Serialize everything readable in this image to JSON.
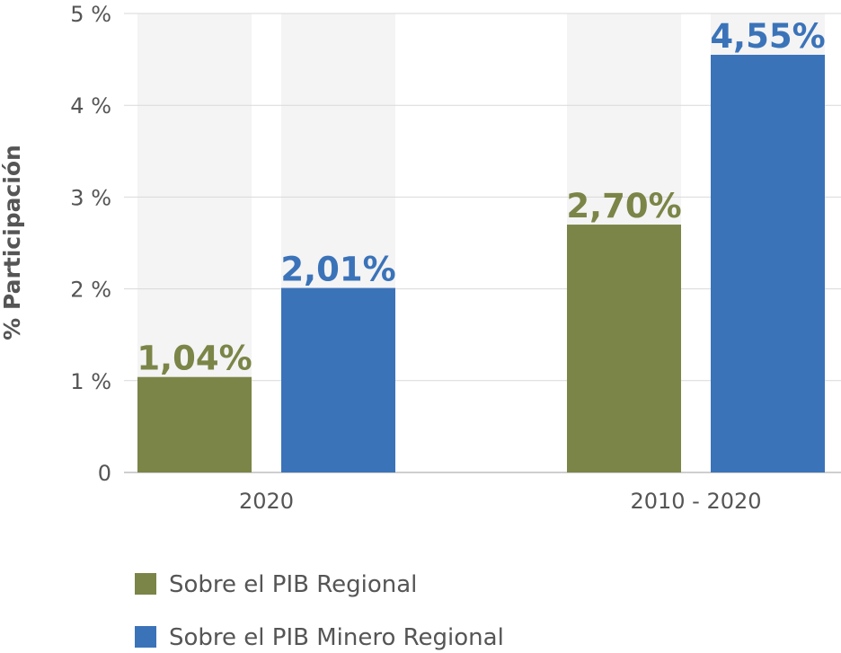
{
  "chart_data": {
    "type": "bar",
    "ylabel": "% Participación",
    "categories": [
      "2020",
      "2010 - 2020"
    ],
    "y_ticks": [
      {
        "value": 0,
        "label": "0"
      },
      {
        "value": 1,
        "label": "1 %"
      },
      {
        "value": 2,
        "label": "2 %"
      },
      {
        "value": 3,
        "label": "3 %"
      },
      {
        "value": 4,
        "label": "4 %"
      },
      {
        "value": 5,
        "label": "5 %"
      }
    ],
    "ylim": [
      0,
      5
    ],
    "grid": true,
    "legend_position": "bottom-left",
    "series": [
      {
        "name": "Sobre el PIB Regional",
        "color": "#7a8547",
        "values": [
          1.04,
          2.7
        ],
        "labels": [
          "1,04%",
          "2,70%"
        ]
      },
      {
        "name": "Sobre el PIB Minero Regional",
        "color": "#3b73b9",
        "values": [
          2.01,
          4.55
        ],
        "labels": [
          "2,01%",
          "4,55%"
        ]
      }
    ]
  }
}
